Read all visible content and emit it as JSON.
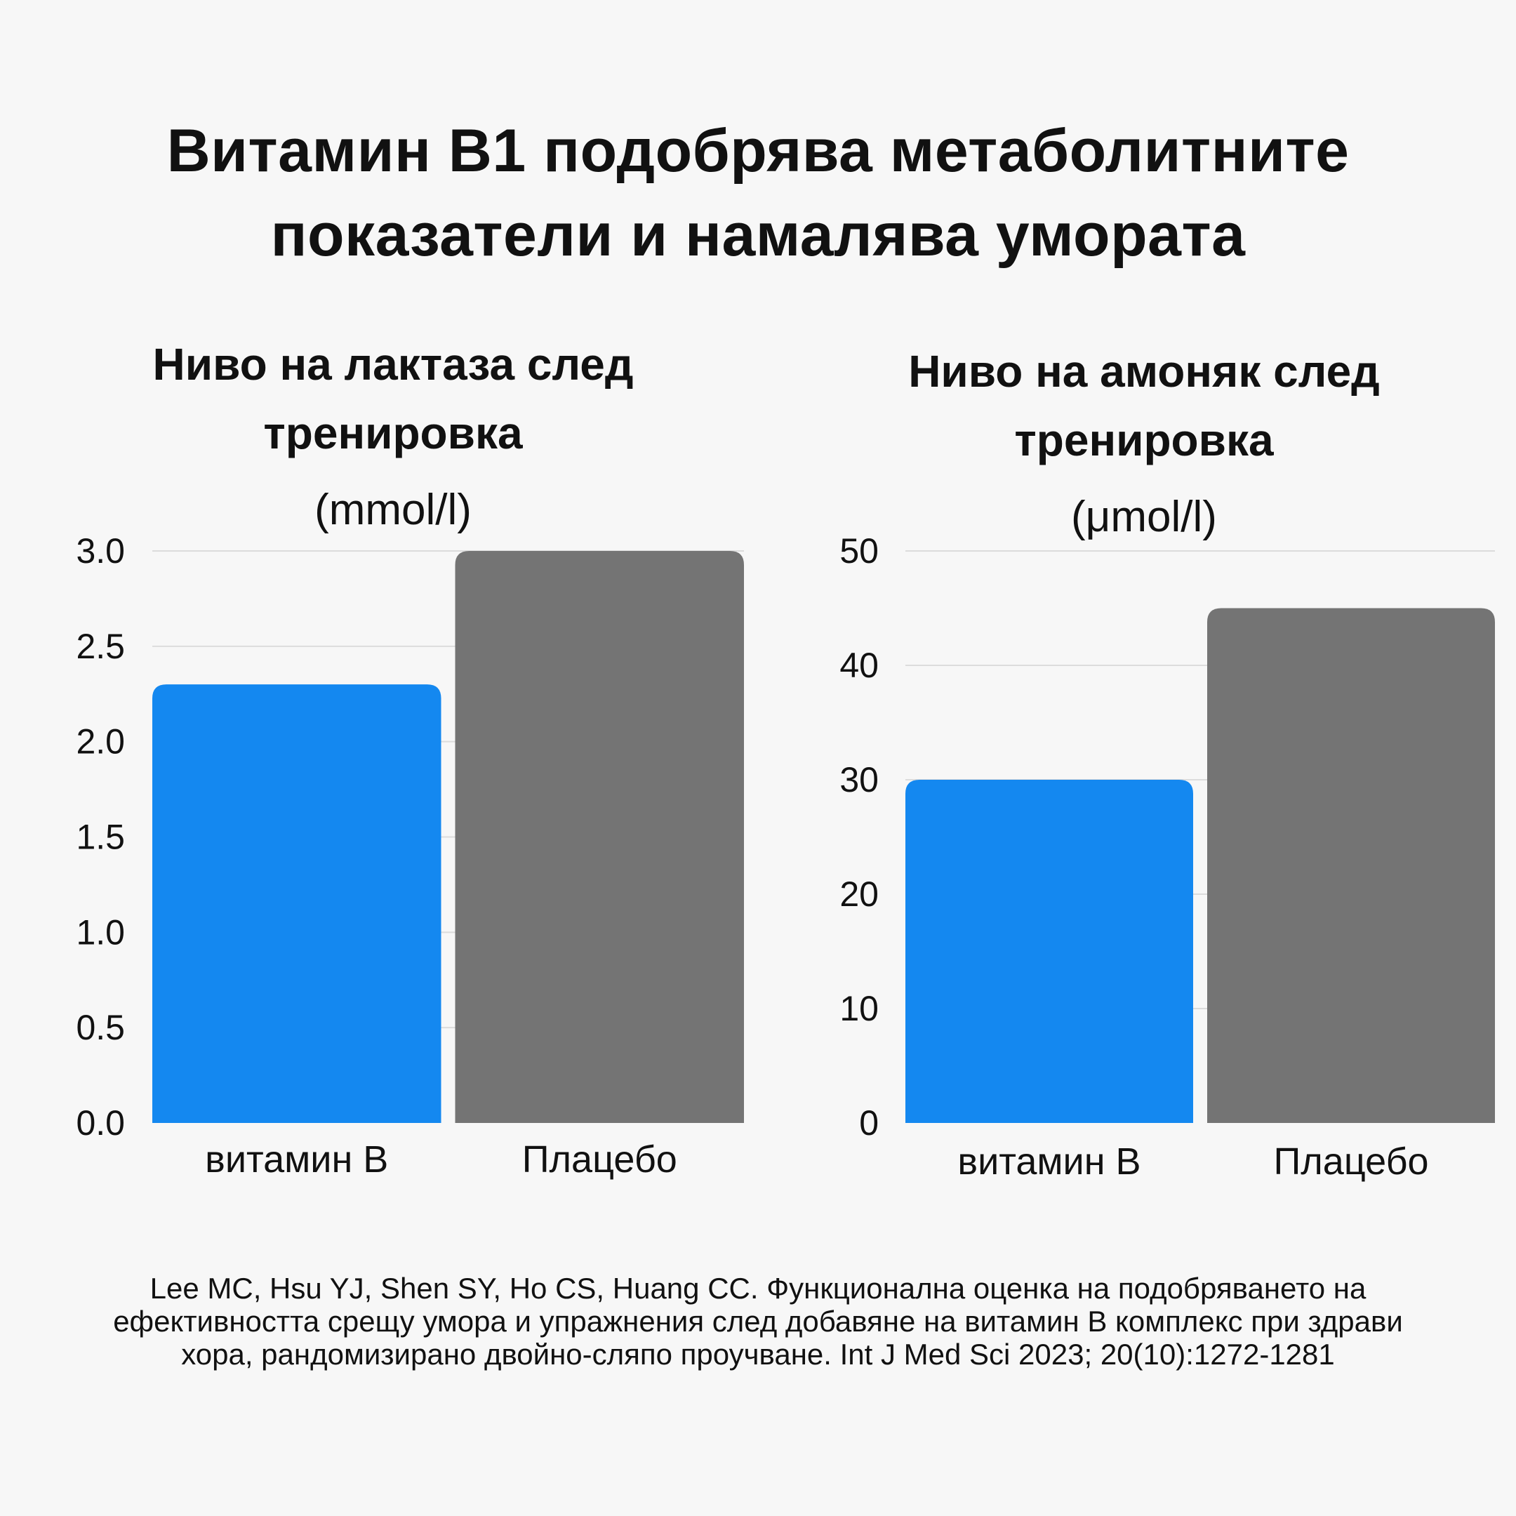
{
  "title": {
    "line1": "Витамин В1 подобрява метаболитните",
    "line2": "показатели и намалява умората"
  },
  "colors": {
    "background": "#f7f7f7",
    "vitamin": "#1488f0",
    "placebo": "#747474",
    "grid": "#dcdcdc"
  },
  "chart_data": [
    {
      "type": "bar",
      "title_line1": "Ниво на лактаза след",
      "title_line2": "тренировка",
      "unit": "(mmol/l)",
      "categories": [
        "витамин В",
        "Плацебо"
      ],
      "values": [
        2.3,
        3.0
      ],
      "ylim": [
        0,
        3.0
      ],
      "yticks": [
        0.0,
        0.5,
        1.0,
        1.5,
        2.0,
        2.5,
        3.0
      ],
      "ytick_labels": [
        "0.0",
        "0.5",
        "1.0",
        "1.5",
        "2.0",
        "2.5",
        "3.0"
      ],
      "grid": true,
      "xlabel": "",
      "ylabel": ""
    },
    {
      "type": "bar",
      "title_line1": "Ниво на амоняк след",
      "title_line2": "тренировка",
      "unit": "(μmol/l)",
      "categories": [
        "витамин В",
        "Плацебо"
      ],
      "values": [
        30,
        45
      ],
      "ylim": [
        0,
        50
      ],
      "yticks": [
        0,
        10,
        20,
        30,
        40,
        50
      ],
      "ytick_labels": [
        "0",
        "10",
        "20",
        "30",
        "40",
        "50"
      ],
      "grid": true,
      "xlabel": "",
      "ylabel": ""
    }
  ],
  "citation": "Lee MC, Hsu YJ, Shen SY, Ho CS, Huang CC. Функционална оценка на подобряването на ефективността срещу умора и упражнения след добавяне на витамин В комплекс при здрави хора, рандомизирано двойно-сляпо проучване. Int J Med Sci 2023; 20(10):1272-1281"
}
